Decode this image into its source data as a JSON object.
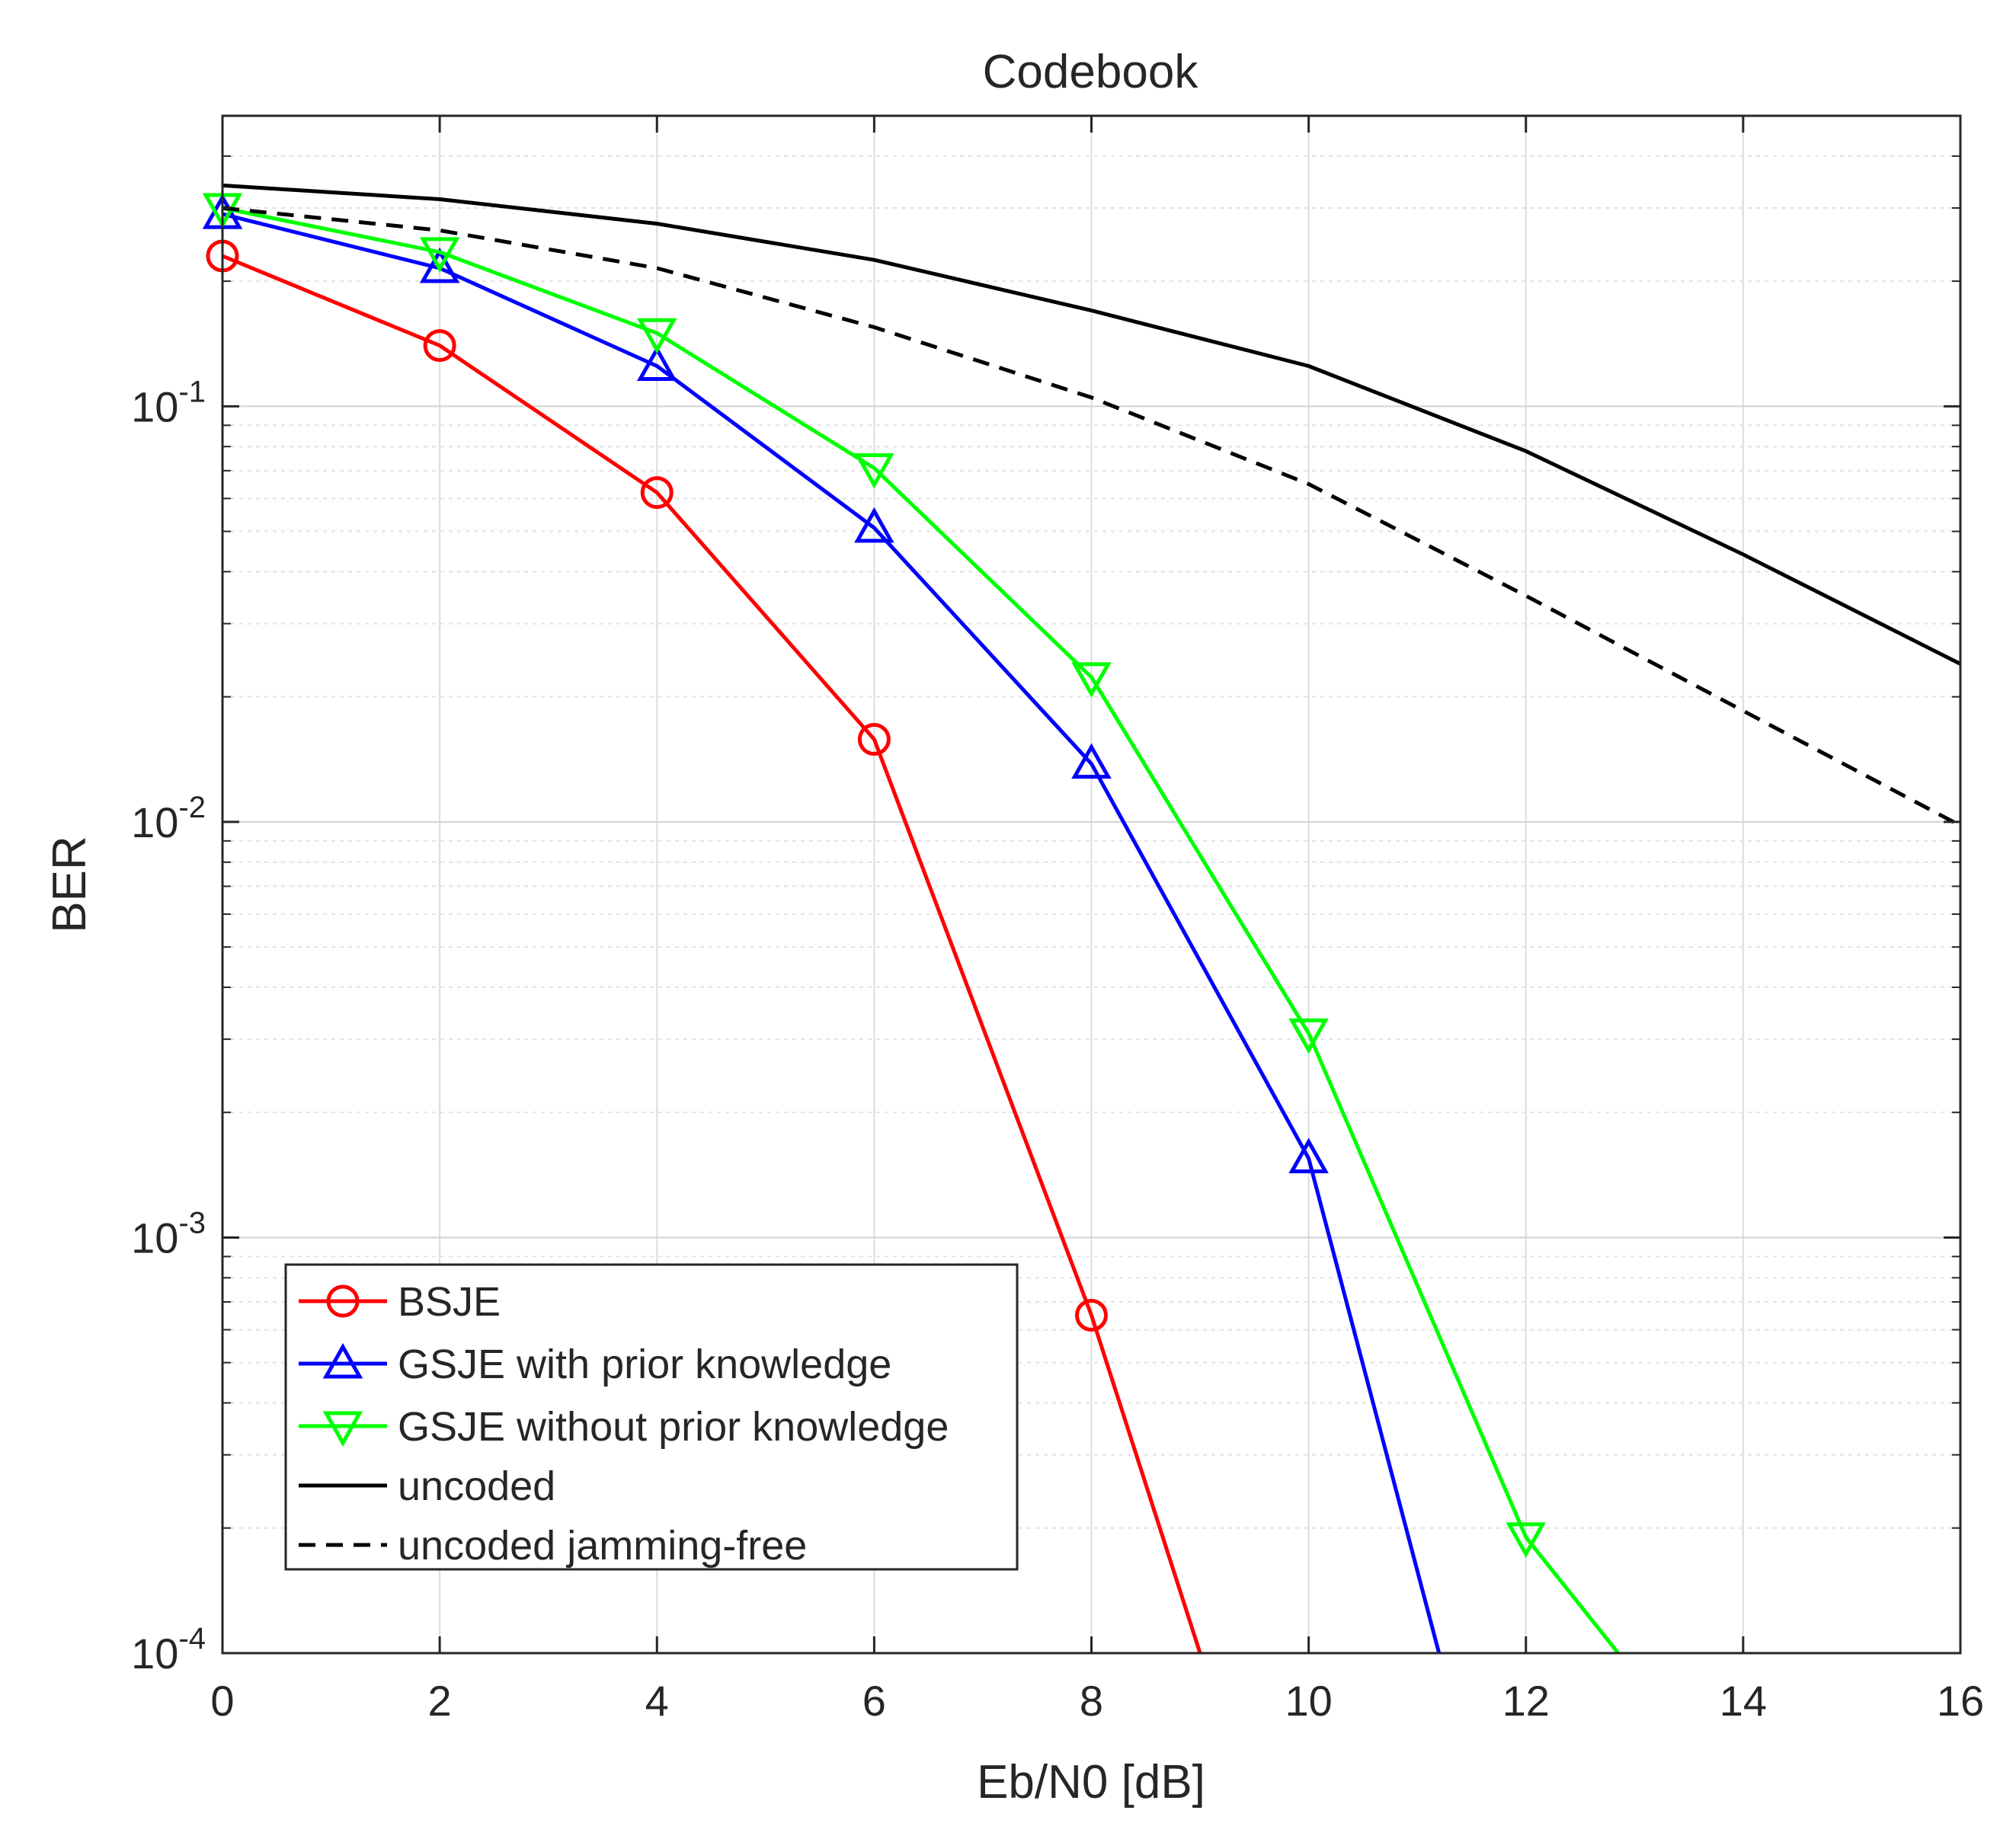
{
  "chart_data": {
    "type": "line",
    "title": "Codebook",
    "xlabel": "Eb/N0 [dB]",
    "ylabel": "BER",
    "xscale": "linear",
    "yscale": "log",
    "xlim": [
      0,
      16
    ],
    "ylim": [
      0.0001,
      0.5
    ],
    "grid": true,
    "minor_grid": true,
    "x_ticks": [
      0,
      2,
      4,
      6,
      8,
      10,
      12,
      14,
      16
    ],
    "x_tick_labels": [
      "0",
      "2",
      "4",
      "6",
      "8",
      "10",
      "12",
      "14",
      "16"
    ],
    "y_ticks": [
      0.1,
      0.01,
      0.001,
      0.0001
    ],
    "y_tick_labels": [
      {
        "base": "10",
        "exp": "-1"
      },
      {
        "base": "10",
        "exp": "-2"
      },
      {
        "base": "10",
        "exp": "-3"
      },
      {
        "base": "10",
        "exp": "-4"
      }
    ],
    "legend_position": "bottom-left",
    "series": [
      {
        "name": "BSJE",
        "color": "#ff0000",
        "marker": "circle",
        "dash": "solid",
        "x": [
          0,
          2,
          4,
          6,
          8,
          9
        ],
        "y": [
          0.23,
          0.14,
          0.062,
          0.0158,
          0.00065,
          0.0001
        ],
        "marker_x": [
          0,
          2,
          4,
          6,
          8
        ]
      },
      {
        "name": "GSJE with prior knowledge",
        "color": "#0000ff",
        "marker": "triangle-up",
        "dash": "solid",
        "x": [
          0,
          2,
          4,
          6,
          8,
          10,
          11.2
        ],
        "y": [
          0.29,
          0.215,
          0.125,
          0.051,
          0.0138,
          0.00155,
          0.0001
        ],
        "marker_x": [
          0,
          2,
          4,
          6,
          8,
          10
        ]
      },
      {
        "name": "GSJE without prior knowledge",
        "color": "#00ff00",
        "marker": "triangle-down",
        "dash": "solid",
        "x": [
          0,
          2,
          4,
          6,
          8,
          10,
          12,
          12.85
        ],
        "y": [
          0.3,
          0.235,
          0.15,
          0.071,
          0.0223,
          0.0031,
          0.00019,
          0.0001
        ],
        "marker_x": [
          0,
          2,
          4,
          6,
          8,
          10,
          12
        ]
      },
      {
        "name": "uncoded",
        "color": "#000000",
        "marker": "none",
        "dash": "solid",
        "x": [
          0,
          2,
          4,
          6,
          8,
          10,
          12,
          14,
          16
        ],
        "y": [
          0.34,
          0.315,
          0.275,
          0.225,
          0.17,
          0.125,
          0.078,
          0.044,
          0.024
        ],
        "marker_x": []
      },
      {
        "name": "uncoded jamming-free",
        "color": "#000000",
        "marker": "none",
        "dash": "dashed",
        "x": [
          0,
          2,
          4,
          6,
          8,
          10,
          12,
          14,
          16
        ],
        "y": [
          0.3,
          0.265,
          0.215,
          0.155,
          0.105,
          0.065,
          0.035,
          0.0185,
          0.0098
        ],
        "marker_x": []
      }
    ]
  }
}
